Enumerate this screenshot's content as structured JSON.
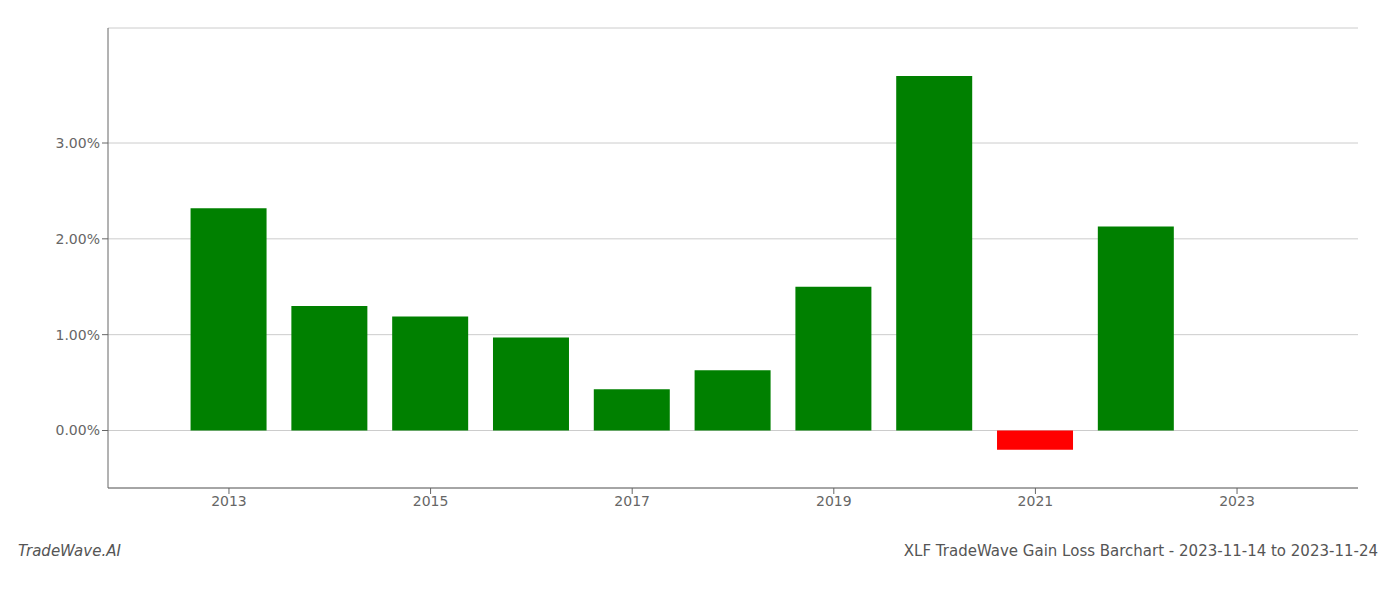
{
  "chart_data": {
    "type": "bar",
    "title": "XLF TradeWave Gain Loss Barchart - 2023-11-14 to 2023-11-24",
    "annotations": [
      "TradeWave.AI"
    ],
    "x": [
      2013,
      2014,
      2015,
      2016,
      2017,
      2018,
      2019,
      2020,
      2021,
      2022
    ],
    "values": [
      0.0232,
      0.013,
      0.0119,
      0.0097,
      0.0043,
      0.0063,
      0.015,
      0.037,
      -0.002,
      0.0213
    ],
    "colors": [
      "#008000",
      "#008000",
      "#008000",
      "#008000",
      "#008000",
      "#008000",
      "#008000",
      "#008000",
      "#ff0000",
      "#008000"
    ],
    "xlim": [
      2011.8,
      2024.2
    ],
    "xticks": [
      2013,
      2015,
      2017,
      2019,
      2021,
      2023
    ],
    "ylim": [
      -0.006,
      0.042
    ],
    "yticks": [
      {
        "value": 0.0,
        "label": "0.00%"
      },
      {
        "value": 0.01,
        "label": "1.00%"
      },
      {
        "value": 0.02,
        "label": "2.00%"
      },
      {
        "value": 0.03,
        "label": "3.00%"
      }
    ],
    "grid": true
  }
}
